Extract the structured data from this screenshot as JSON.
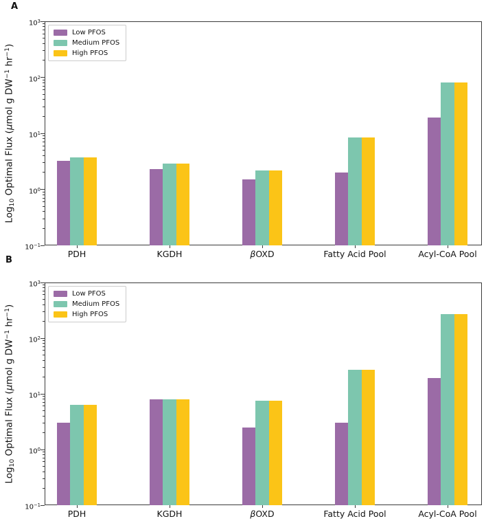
{
  "figure": {
    "background": "#ffffff",
    "axis_color": "#3a3a3a",
    "text_color": "#111111",
    "panel_labels": [
      "A",
      "B"
    ]
  },
  "chart_data": [
    {
      "type": "bar",
      "panel": "A",
      "title": "",
      "xlabel": "",
      "ylabel": "Log10 Optimal Flux (μmol g DW−1 hr−1)",
      "yscale": "log",
      "ylim": [
        0.1,
        1000
      ],
      "ytick_exponents": [
        3,
        2,
        1,
        0,
        -1
      ],
      "grid": false,
      "legend_position": "upper left",
      "categories": [
        "PDH",
        "KGDH",
        "βOXD",
        "Fatty Acid Pool",
        "Acyl-CoA Pool"
      ],
      "series": [
        {
          "name": "Low PFOS",
          "color": "#9b6ba6",
          "values": [
            3.2,
            2.3,
            1.5,
            2.0,
            19
          ]
        },
        {
          "name": "Medium PFOS",
          "color": "#7dc6ae",
          "values": [
            3.7,
            2.9,
            2.2,
            8.5,
            82
          ]
        },
        {
          "name": "High PFOS",
          "color": "#fbc417",
          "values": [
            3.7,
            2.9,
            2.2,
            8.5,
            82
          ]
        }
      ]
    },
    {
      "type": "bar",
      "panel": "B",
      "title": "",
      "xlabel": "",
      "ylabel": "Log10 Optimal Flux (μmol g DW−1 hr−1)",
      "yscale": "log",
      "ylim": [
        0.1,
        1000
      ],
      "ytick_exponents": [
        3,
        2,
        1,
        0,
        -1
      ],
      "grid": false,
      "legend_position": "upper left",
      "categories": [
        "PDH",
        "KGDH",
        "βOXD",
        "Fatty Acid Pool",
        "Acyl-CoA Pool"
      ],
      "series": [
        {
          "name": "Low PFOS",
          "color": "#9b6ba6",
          "values": [
            3.0,
            8.0,
            2.5,
            3.0,
            19
          ]
        },
        {
          "name": "Medium PFOS",
          "color": "#7dc6ae",
          "values": [
            6.3,
            8.0,
            7.6,
            27,
            270
          ]
        },
        {
          "name": "High PFOS",
          "color": "#fbc417",
          "values": [
            6.3,
            8.0,
            7.6,
            27,
            270
          ]
        }
      ]
    }
  ]
}
